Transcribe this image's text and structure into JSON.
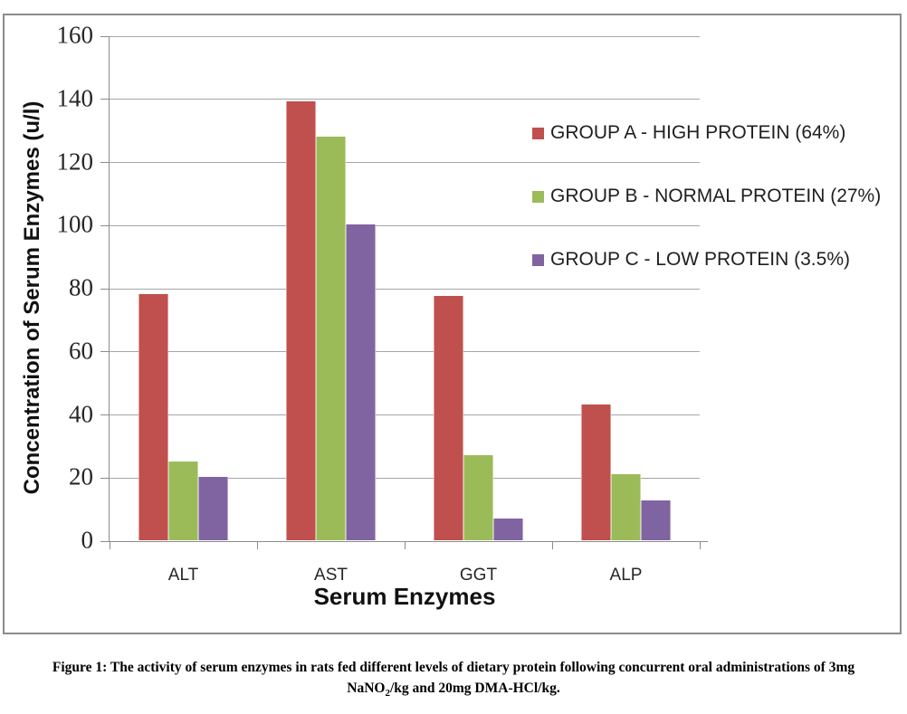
{
  "chart_data": {
    "type": "bar",
    "title": "",
    "categories": [
      "ALT",
      "AST",
      "GGT",
      "ALP"
    ],
    "series": [
      {
        "name": "GROUP A - HIGH PROTEIN (64%)",
        "color": "#C0504D",
        "values": [
          78,
          139,
          77.5,
          43
        ]
      },
      {
        "name": "GROUP B - NORMAL PROTEIN (27%)",
        "color": "#9BBB59",
        "values": [
          25,
          128,
          27,
          21
        ]
      },
      {
        "name": "GROUP C - LOW PROTEIN (3.5%)",
        "color": "#8064A2",
        "values": [
          20,
          100,
          7,
          12.5
        ]
      }
    ],
    "xlabel": "Serum Enzymes",
    "ylabel": "Concentration of Serum Enzymes (u/l)",
    "ylim": [
      0,
      160
    ],
    "ytick_step": 20,
    "yticks": [
      0,
      20,
      40,
      60,
      80,
      100,
      120,
      140,
      160
    ],
    "grid": true,
    "legend_position": "right-overlay"
  },
  "colors": {
    "grid": "#a6a6a6",
    "axis": "#8c8c8c",
    "frame_border": "#8c8c8c",
    "tick_text": "#262626"
  },
  "caption": {
    "line1": "Figure 1: The activity of serum enzymes in rats fed different levels of dietary protein following concurrent oral administrations of 3mg",
    "line2_pre": "NaNO",
    "line2_sub": "2",
    "line2_post": "/kg and 20mg DMA-HCl/kg."
  }
}
